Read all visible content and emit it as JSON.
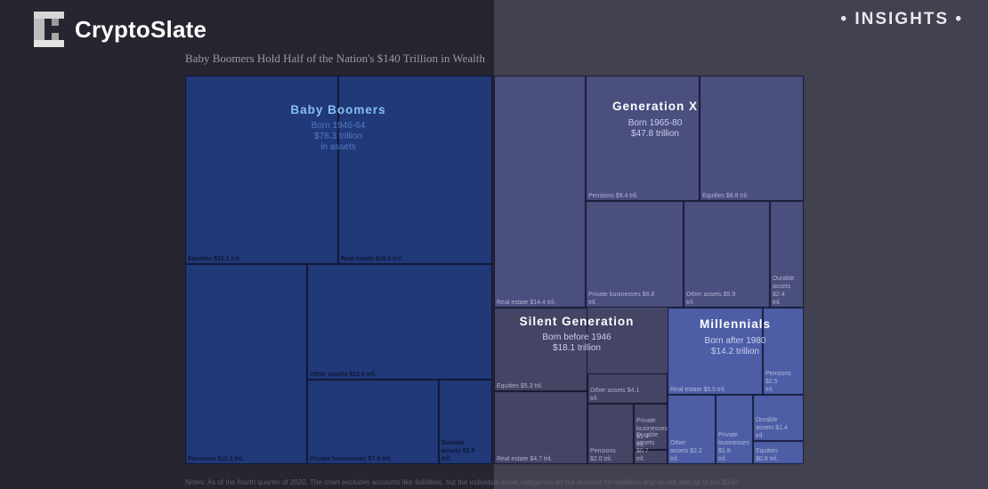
{
  "header": {
    "brand": "CryptoSlate",
    "badge": "• INSIGHTS •"
  },
  "colors": {
    "boomers": "#233d80",
    "genx": "#4b4f7e",
    "silent": "#444465",
    "millennials": "#4d5ea6"
  },
  "chart_data": {
    "type": "treemap",
    "title": "Baby Boomers Hold Half of the Nation's $140 Trillion in Wealth",
    "note": "Notes: As of the fourth quarter of 2020. The chart excludes accounts like liabilities, but the individual asset categories do not account for liabilities and do not add up to the $140",
    "groups": [
      {
        "key": "boomers",
        "name": "Baby Boomers",
        "sub": [
          "Born 1946-64",
          "$78.3 trillion",
          "in assets"
        ],
        "total": 78.3,
        "items": [
          {
            "label": "Equities $15.1 tril.",
            "value": 15.1
          },
          {
            "label": "Real estate $18.0 tril.",
            "value": 18.0
          },
          {
            "label": "Pensions $15.1 tril.",
            "value": 15.1
          },
          {
            "label": "Other assets $13.5 tril.",
            "value": 13.5
          },
          {
            "label": "Private businesses $7.4 tril.",
            "value": 7.4
          },
          {
            "label": "Durable assets $2.9 tril.",
            "value": 2.9
          }
        ]
      },
      {
        "key": "genx",
        "name": "Generation X",
        "sub": [
          "Born 1965-80",
          "$47.8 trillion"
        ],
        "total": 47.8,
        "items": [
          {
            "label": "Real estate $14.4 tril.",
            "value": 14.4
          },
          {
            "label": "Pensions $9.4 tril.",
            "value": 9.4
          },
          {
            "label": "Equities $8.8 tril.",
            "value": 8.8
          },
          {
            "label": "Private businesses $6.8 tril.",
            "value": 6.8
          },
          {
            "label": "Other assets $5.9 tril.",
            "value": 5.9
          },
          {
            "label": "Durable assets $2.4 tril.",
            "value": 2.4
          }
        ]
      },
      {
        "key": "silent",
        "name": "Silent Generation",
        "sub": [
          "Born before 1946",
          "$18.1 trillion"
        ],
        "total": 18.1,
        "items": [
          {
            "label": "Equities $5.3 tril.",
            "value": 5.3
          },
          {
            "label": "Real estate $4.7 tril.",
            "value": 4.7
          },
          {
            "label": "Other assets $4.1 tril.",
            "value": 4.1
          },
          {
            "label": "Pensions $2.0 tril.",
            "value": 2.0
          },
          {
            "label": "Private businesses $1.4 tril.",
            "value": 1.4
          },
          {
            "label": "Durable assets $0.7 tril.",
            "value": 0.7
          }
        ]
      },
      {
        "key": "millennials",
        "name": "Millennials",
        "sub": [
          "Born after 1980",
          "$14.2 trillion"
        ],
        "total": 14.2,
        "items": [
          {
            "label": "Real estate $5.5 tril.",
            "value": 5.5
          },
          {
            "label": "Pensions $2.5 tril.",
            "value": 2.5
          },
          {
            "label": "Other assets $2.2 tril.",
            "value": 2.2
          },
          {
            "label": "Private businesses $1.8 tril.",
            "value": 1.8
          },
          {
            "label": "Durable assets $1.4 tril.",
            "value": 1.4
          },
          {
            "label": "Equities $0.8 tril.",
            "value": 0.8
          }
        ]
      }
    ]
  }
}
